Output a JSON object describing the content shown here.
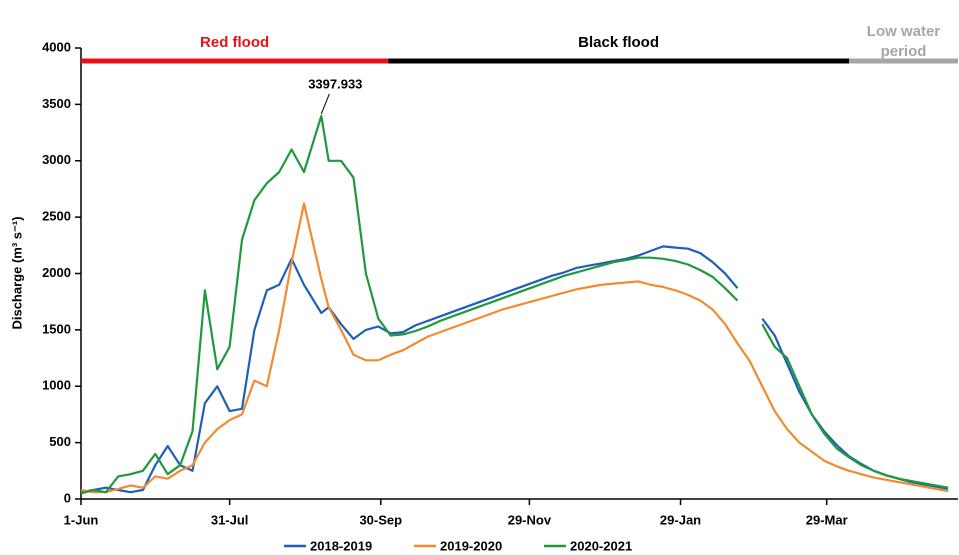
{
  "chart_data": {
    "type": "line",
    "y_label": "Discharge (m³ s⁻¹)",
    "x": [
      0,
      5,
      10,
      15,
      20,
      25,
      30,
      35,
      40,
      45,
      50,
      55,
      60,
      65,
      70,
      75,
      80,
      85,
      90,
      97,
      100,
      105,
      110,
      115,
      120,
      125,
      130,
      135,
      140,
      145,
      150,
      155,
      160,
      165,
      170,
      175,
      180,
      185,
      190,
      195,
      200,
      205,
      210,
      215,
      220,
      225,
      230,
      235,
      240,
      245,
      250,
      255,
      260,
      265,
      270,
      275,
      280,
      285,
      290,
      295,
      300,
      305,
      310,
      315,
      320,
      325,
      330,
      335,
      340,
      345,
      350
    ],
    "xlim": [
      0,
      354
    ],
    "xticks": [
      {
        "value": 0,
        "label": "1-Jun"
      },
      {
        "value": 60,
        "label": "31-Jul"
      },
      {
        "value": 121,
        "label": "30-Sep"
      },
      {
        "value": 181,
        "label": "29-Nov"
      },
      {
        "value": 242,
        "label": "29-Jan"
      },
      {
        "value": 301,
        "label": "29-Mar"
      }
    ],
    "ylim": [
      0,
      4000
    ],
    "yticks": [
      0,
      500,
      1000,
      1500,
      2000,
      2500,
      3000,
      3500,
      4000
    ],
    "series": [
      {
        "name": "2018-2019",
        "color": "#1f5fba",
        "values": [
          60,
          80,
          100,
          80,
          60,
          80,
          300,
          470,
          300,
          250,
          850,
          1000,
          780,
          800,
          1500,
          1850,
          1900,
          2130,
          1900,
          1650,
          1700,
          1550,
          1420,
          1500,
          1530,
          1470,
          1480,
          1540,
          1580,
          1620,
          1660,
          1700,
          1740,
          1780,
          1820,
          1860,
          1900,
          1940,
          1980,
          2010,
          2050,
          2070,
          2090,
          2110,
          2130,
          2160,
          2200,
          2240,
          2230,
          2220,
          2180,
          2100,
          2000,
          1870,
          null,
          1600,
          1450,
          1200,
          950,
          750,
          600,
          480,
          380,
          310,
          250,
          210,
          180,
          150,
          130,
          110,
          90
        ]
      },
      {
        "name": "2019-2020",
        "color": "#f28a30",
        "values": [
          80,
          60,
          60,
          90,
          120,
          100,
          200,
          180,
          250,
          300,
          500,
          620,
          700,
          750,
          1050,
          1000,
          1500,
          2100,
          2620,
          1950,
          1700,
          1500,
          1280,
          1230,
          1230,
          1280,
          1320,
          1380,
          1440,
          1480,
          1520,
          1560,
          1600,
          1640,
          1680,
          1710,
          1740,
          1770,
          1800,
          1830,
          1860,
          1880,
          1900,
          1910,
          1920,
          1930,
          1900,
          1880,
          1850,
          1810,
          1760,
          1680,
          1550,
          1380,
          1220,
          1000,
          780,
          620,
          500,
          420,
          340,
          290,
          250,
          220,
          190,
          170,
          150,
          130,
          110,
          90,
          70
        ]
      },
      {
        "name": "2020-2021",
        "color": "#1e9a3c",
        "values": [
          50,
          80,
          60,
          200,
          220,
          250,
          400,
          220,
          300,
          600,
          1850,
          1150,
          1350,
          2300,
          2650,
          2800,
          2900,
          3100,
          2900,
          3397.933,
          3000,
          3000,
          2850,
          2000,
          1600,
          1450,
          1460,
          1490,
          1530,
          1580,
          1620,
          1660,
          1700,
          1740,
          1780,
          1820,
          1860,
          1900,
          1940,
          1980,
          2010,
          2040,
          2070,
          2100,
          2120,
          2140,
          2140,
          2130,
          2110,
          2080,
          2030,
          1970,
          1870,
          1760,
          null,
          1550,
          1350,
          1250,
          1000,
          750,
          580,
          450,
          370,
          300,
          250,
          210,
          180,
          160,
          140,
          120,
          100
        ]
      }
    ],
    "annotations": [
      {
        "text": 3397.933,
        "x": 97,
        "y": 3397.933
      }
    ],
    "periods": [
      {
        "name": "Red flood",
        "color": "#e8111b",
        "start": 0,
        "end": 124
      },
      {
        "name": "Black flood",
        "color": "#000000",
        "start": 124,
        "end": 310
      },
      {
        "name": "Low water period",
        "color": "#a6a6a6",
        "start": 310,
        "end": 354
      }
    ],
    "legend": "bottom"
  }
}
